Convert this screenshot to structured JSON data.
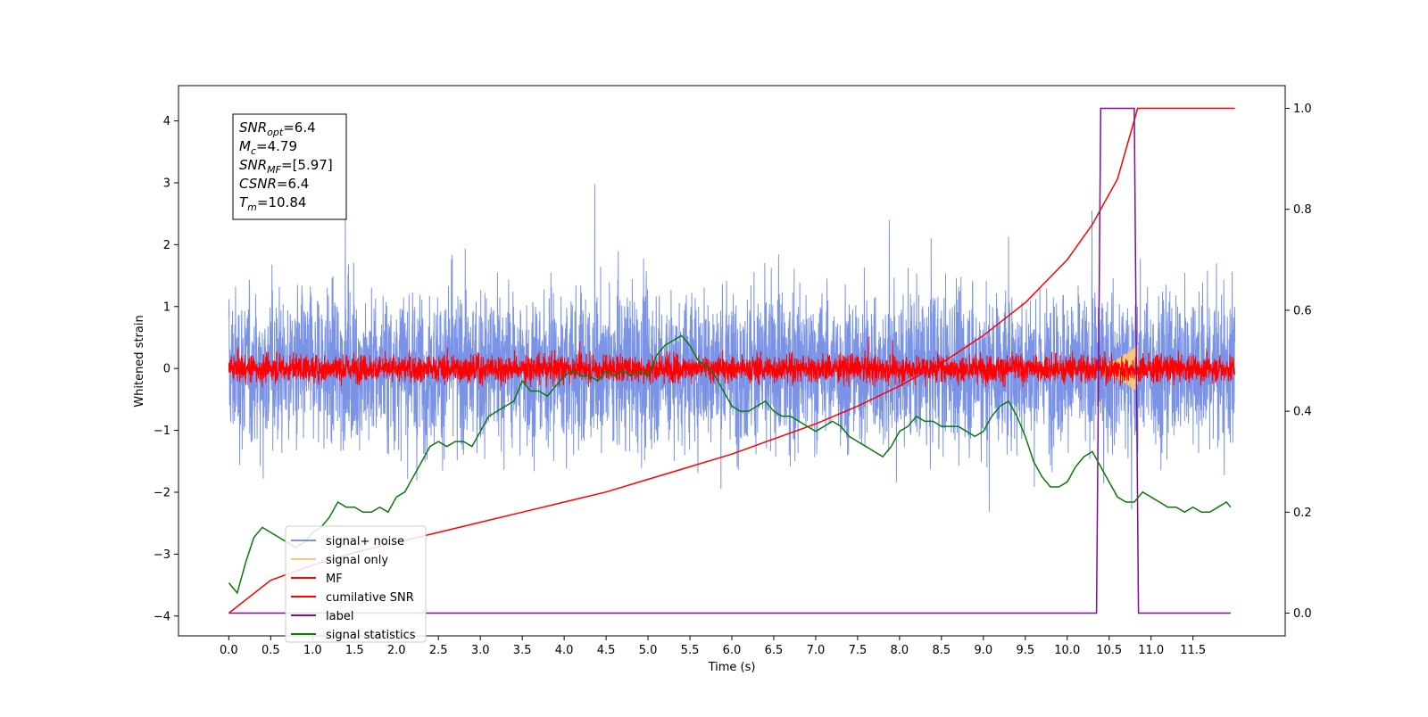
{
  "chart_data": {
    "type": "line",
    "title": "",
    "xlabel": "Time (s)",
    "ylabel": "Whitened strain",
    "ylabel_right": "",
    "xlim": [
      -0.6,
      12.6
    ],
    "ylim": [
      -4.32,
      4.57
    ],
    "ylim_right": [
      -0.045,
      1.045
    ],
    "x_ticks": [
      0.0,
      0.5,
      1.0,
      1.5,
      2.0,
      2.5,
      3.0,
      3.5,
      4.0,
      4.5,
      5.0,
      5.5,
      6.0,
      6.5,
      7.0,
      7.5,
      8.0,
      8.5,
      9.0,
      9.5,
      10.0,
      10.5,
      11.0,
      11.5
    ],
    "x_tick_labels": [
      "0.0",
      "0.5",
      "1.0",
      "1.5",
      "2.0",
      "2.5",
      "3.0",
      "3.5",
      "4.0",
      "4.5",
      "5.0",
      "5.5",
      "6.0",
      "6.5",
      "7.0",
      "7.5",
      "8.0",
      "8.5",
      "9.0",
      "9.5",
      "10.0",
      "10.5",
      "11.0",
      "11.5"
    ],
    "y_ticks": [
      4,
      3,
      2,
      1,
      0,
      -1,
      -2,
      -3,
      -4
    ],
    "y_tick_labels": [
      "4",
      "3",
      "2",
      "1",
      "0",
      "−1",
      "−2",
      "−3",
      "−4"
    ],
    "y_right_ticks": [
      1.0,
      0.8,
      0.6,
      0.4,
      0.2,
      0.0
    ],
    "y_right_tick_labels": [
      "1.0",
      "0.8",
      "0.6",
      "0.4",
      "0.2",
      "0.0"
    ],
    "legend_position": "lower-left",
    "grid": false,
    "stats_box": [
      {
        "main": "SNR",
        "sub": "opt",
        "rest": "=6.4"
      },
      {
        "main": "M",
        "sub": "c",
        "rest": "=4.79"
      },
      {
        "main": "SNR",
        "sub": "MF",
        "rest": "=[5.97]"
      },
      {
        "main": "CSNR",
        "sub": "",
        "rest": "=6.4"
      },
      {
        "main": "T",
        "sub": "m",
        "rest": "=10.84"
      }
    ],
    "series": [
      {
        "name": "signal+ noise",
        "color": "#7a93e6",
        "axis": "left",
        "kind": "noise",
        "x_range": [
          0.0,
          12.0
        ],
        "amplitude_range": [
          -3.9,
          4.2
        ],
        "typical_band": [
          -1.5,
          1.5
        ]
      },
      {
        "name": "signal only",
        "color": "#f5c97a",
        "axis": "left",
        "kind": "chirp",
        "x_range": [
          10.3,
          10.84
        ],
        "amplitude_range": [
          -0.4,
          0.4
        ]
      },
      {
        "name": "MF",
        "color": "#ff0000",
        "axis": "left",
        "kind": "noise",
        "x_range": [
          0.0,
          12.0
        ],
        "amplitude_range": [
          -0.3,
          0.6
        ],
        "typical_band": [
          -0.2,
          0.2
        ]
      },
      {
        "name": "cumilative SNR",
        "color": "#ff0000",
        "axis": "right",
        "x": [
          0.0,
          0.5,
          1.0,
          1.5,
          2.0,
          2.5,
          3.0,
          3.5,
          4.0,
          4.5,
          5.0,
          5.5,
          6.0,
          6.5,
          7.0,
          7.5,
          8.0,
          8.5,
          9.0,
          9.5,
          10.0,
          10.3,
          10.6,
          10.84,
          11.0,
          12.0
        ],
        "y": [
          0.0,
          0.065,
          0.095,
          0.12,
          0.14,
          0.16,
          0.18,
          0.2,
          0.22,
          0.24,
          0.265,
          0.29,
          0.315,
          0.345,
          0.375,
          0.41,
          0.45,
          0.495,
          0.55,
          0.615,
          0.7,
          0.77,
          0.86,
          1.0,
          1.0,
          1.0
        ]
      },
      {
        "name": "label",
        "color": "#7b0f8f",
        "axis": "right",
        "x": [
          0.0,
          10.35,
          10.4,
          10.8,
          10.85,
          11.95
        ],
        "y": [
          0.0,
          0.0,
          1.0,
          1.0,
          0.0,
          0.0
        ]
      },
      {
        "name": "signal statistics",
        "color": "#0a7a0a",
        "axis": "right",
        "x": [
          0.0,
          0.1,
          0.2,
          0.3,
          0.4,
          0.5,
          0.6,
          0.7,
          0.8,
          0.9,
          1.0,
          1.1,
          1.2,
          1.3,
          1.4,
          1.5,
          1.6,
          1.7,
          1.8,
          1.9,
          2.0,
          2.1,
          2.2,
          2.3,
          2.4,
          2.5,
          2.6,
          2.7,
          2.8,
          2.9,
          3.0,
          3.1,
          3.2,
          3.3,
          3.4,
          3.5,
          3.6,
          3.7,
          3.8,
          3.9,
          4.0,
          4.1,
          4.2,
          4.3,
          4.4,
          4.5,
          4.6,
          4.7,
          4.8,
          4.9,
          5.0,
          5.1,
          5.2,
          5.3,
          5.4,
          5.5,
          5.6,
          5.7,
          5.8,
          5.9,
          6.0,
          6.1,
          6.2,
          6.3,
          6.4,
          6.5,
          6.6,
          6.7,
          6.8,
          6.9,
          7.0,
          7.1,
          7.2,
          7.3,
          7.4,
          7.5,
          7.6,
          7.7,
          7.8,
          7.9,
          8.0,
          8.1,
          8.2,
          8.3,
          8.4,
          8.5,
          8.6,
          8.7,
          8.8,
          8.9,
          9.0,
          9.1,
          9.2,
          9.3,
          9.4,
          9.5,
          9.6,
          9.7,
          9.8,
          9.9,
          10.0,
          10.1,
          10.2,
          10.3,
          10.4,
          10.5,
          10.6,
          10.7,
          10.8,
          10.9,
          11.0,
          11.1,
          11.2,
          11.3,
          11.4,
          11.5,
          11.6,
          11.7,
          11.8,
          11.9,
          11.95
        ],
        "y": [
          0.06,
          0.04,
          0.1,
          0.15,
          0.17,
          0.16,
          0.15,
          0.14,
          0.13,
          0.14,
          0.16,
          0.17,
          0.19,
          0.22,
          0.21,
          0.21,
          0.2,
          0.2,
          0.21,
          0.2,
          0.23,
          0.24,
          0.27,
          0.3,
          0.33,
          0.34,
          0.33,
          0.34,
          0.34,
          0.33,
          0.36,
          0.39,
          0.4,
          0.41,
          0.42,
          0.46,
          0.44,
          0.44,
          0.43,
          0.45,
          0.47,
          0.48,
          0.47,
          0.47,
          0.46,
          0.48,
          0.47,
          0.48,
          0.47,
          0.48,
          0.47,
          0.51,
          0.53,
          0.54,
          0.55,
          0.53,
          0.5,
          0.49,
          0.47,
          0.44,
          0.41,
          0.4,
          0.4,
          0.41,
          0.42,
          0.4,
          0.39,
          0.39,
          0.38,
          0.37,
          0.36,
          0.37,
          0.38,
          0.37,
          0.35,
          0.34,
          0.33,
          0.32,
          0.31,
          0.33,
          0.36,
          0.37,
          0.39,
          0.38,
          0.38,
          0.37,
          0.37,
          0.37,
          0.36,
          0.35,
          0.36,
          0.39,
          0.41,
          0.42,
          0.39,
          0.35,
          0.3,
          0.27,
          0.25,
          0.25,
          0.26,
          0.29,
          0.31,
          0.32,
          0.29,
          0.26,
          0.23,
          0.22,
          0.22,
          0.24,
          0.23,
          0.22,
          0.21,
          0.21,
          0.2,
          0.21,
          0.2,
          0.2,
          0.21,
          0.22,
          0.21
        ]
      }
    ]
  }
}
